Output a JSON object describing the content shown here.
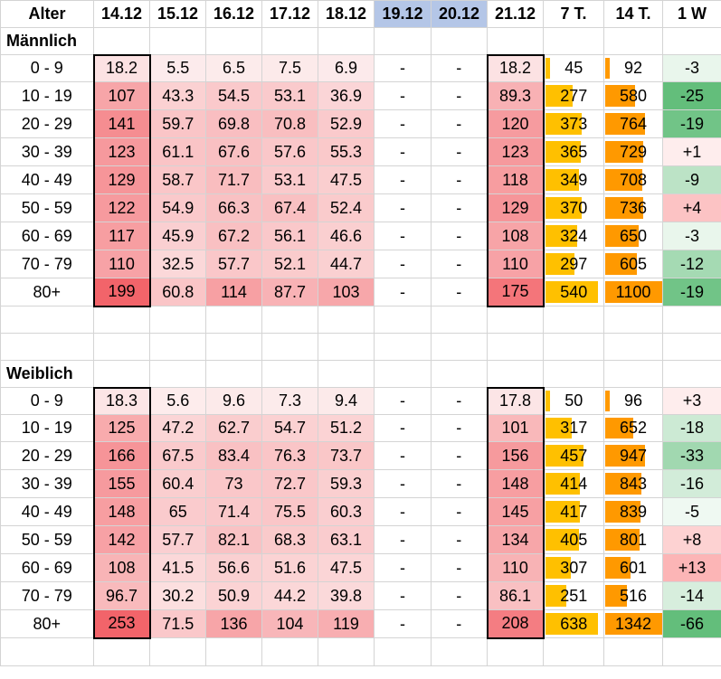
{
  "header": {
    "label": "Alter",
    "dates": [
      "14.12",
      "15.12",
      "16.12",
      "17.12",
      "18.12",
      "19.12",
      "20.12",
      "21.12"
    ],
    "sums": [
      "7 T.",
      "14 T.",
      "1 W"
    ]
  },
  "colors": {
    "heat_low": "#fdf2f2",
    "heat_high": "#f26066",
    "bar7": "#ffc000",
    "bar14": "#ff9900",
    "delta_neg_strong": "#63be7b",
    "delta_pos_strong": "#f8696b",
    "holiday_header": "#b4c6e7"
  },
  "sections": [
    {
      "title": "Männlich",
      "rows": [
        {
          "age": "0 - 9",
          "values": [
            "18.2",
            "5.5",
            "6.5",
            "7.5",
            "6.9",
            "-",
            "-",
            "18.2"
          ],
          "sum7": "45",
          "sum14": "92",
          "diff": "-3"
        },
        {
          "age": "10 - 19",
          "values": [
            "107",
            "43.3",
            "54.5",
            "53.1",
            "36.9",
            "-",
            "-",
            "89.3"
          ],
          "sum7": "277",
          "sum14": "580",
          "diff": "-25"
        },
        {
          "age": "20 - 29",
          "values": [
            "141",
            "59.7",
            "69.8",
            "70.8",
            "52.9",
            "-",
            "-",
            "120"
          ],
          "sum7": "373",
          "sum14": "764",
          "diff": "-19"
        },
        {
          "age": "30 - 39",
          "values": [
            "123",
            "61.1",
            "67.6",
            "57.6",
            "55.3",
            "-",
            "-",
            "123"
          ],
          "sum7": "365",
          "sum14": "729",
          "diff": "+1"
        },
        {
          "age": "40 - 49",
          "values": [
            "129",
            "58.7",
            "71.7",
            "53.1",
            "47.5",
            "-",
            "-",
            "118"
          ],
          "sum7": "349",
          "sum14": "708",
          "diff": "-9"
        },
        {
          "age": "50 - 59",
          "values": [
            "122",
            "54.9",
            "66.3",
            "67.4",
            "52.4",
            "-",
            "-",
            "129"
          ],
          "sum7": "370",
          "sum14": "736",
          "diff": "+4"
        },
        {
          "age": "60 - 69",
          "values": [
            "117",
            "45.9",
            "67.2",
            "56.1",
            "46.6",
            "-",
            "-",
            "108"
          ],
          "sum7": "324",
          "sum14": "650",
          "diff": "-3"
        },
        {
          "age": "70 - 79",
          "values": [
            "110",
            "32.5",
            "57.7",
            "52.1",
            "44.7",
            "-",
            "-",
            "110"
          ],
          "sum7": "297",
          "sum14": "605",
          "diff": "-12"
        },
        {
          "age": "80+",
          "values": [
            "199",
            "60.8",
            "114",
            "87.7",
            "103",
            "-",
            "-",
            "175"
          ],
          "sum7": "540",
          "sum14": "1100",
          "diff": "-19"
        }
      ]
    },
    {
      "title": "Weiblich",
      "rows": [
        {
          "age": "0 - 9",
          "values": [
            "18.3",
            "5.6",
            "9.6",
            "7.3",
            "9.4",
            "-",
            "-",
            "17.8"
          ],
          "sum7": "50",
          "sum14": "96",
          "diff": "+3"
        },
        {
          "age": "10 - 19",
          "values": [
            "125",
            "47.2",
            "62.7",
            "54.7",
            "51.2",
            "-",
            "-",
            "101"
          ],
          "sum7": "317",
          "sum14": "652",
          "diff": "-18"
        },
        {
          "age": "20 - 29",
          "values": [
            "166",
            "67.5",
            "83.4",
            "76.3",
            "73.7",
            "-",
            "-",
            "156"
          ],
          "sum7": "457",
          "sum14": "947",
          "diff": "-33"
        },
        {
          "age": "30 - 39",
          "values": [
            "155",
            "60.4",
            "73",
            "72.7",
            "59.3",
            "-",
            "-",
            "148"
          ],
          "sum7": "414",
          "sum14": "843",
          "diff": "-16"
        },
        {
          "age": "40 - 49",
          "values": [
            "148",
            "65",
            "71.4",
            "75.5",
            "60.3",
            "-",
            "-",
            "145"
          ],
          "sum7": "417",
          "sum14": "839",
          "diff": "-5"
        },
        {
          "age": "50 - 59",
          "values": [
            "142",
            "57.7",
            "82.1",
            "68.3",
            "63.1",
            "-",
            "-",
            "134"
          ],
          "sum7": "405",
          "sum14": "801",
          "diff": "+8"
        },
        {
          "age": "60 - 69",
          "values": [
            "108",
            "41.5",
            "56.6",
            "51.6",
            "47.5",
            "-",
            "-",
            "110"
          ],
          "sum7": "307",
          "sum14": "601",
          "diff": "+13"
        },
        {
          "age": "70 - 79",
          "values": [
            "96.7",
            "30.2",
            "50.9",
            "44.2",
            "39.8",
            "-",
            "-",
            "86.1"
          ],
          "sum7": "251",
          "sum14": "516",
          "diff": "-14"
        },
        {
          "age": "80+",
          "values": [
            "253",
            "71.5",
            "136",
            "104",
            "119",
            "-",
            "-",
            "208"
          ],
          "sum7": "638",
          "sum14": "1342",
          "diff": "-66"
        }
      ]
    }
  ]
}
